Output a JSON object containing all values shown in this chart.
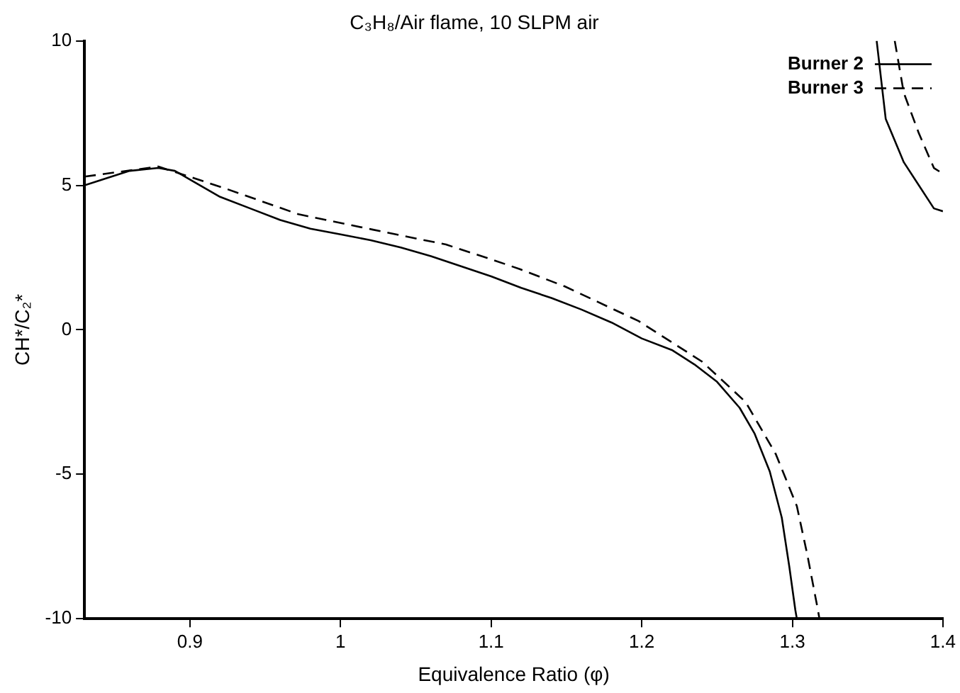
{
  "chart_data": {
    "type": "line",
    "title": "C₃H₈/Air flame, 10 SLPM air",
    "xlabel": "Equivalence Ratio (φ)",
    "ylabel": "CH*/C₂*",
    "xlim": [
      0.83,
      1.4
    ],
    "xticks": [
      0.9,
      1,
      1.1,
      1.2,
      1.3,
      1.4
    ],
    "ylim": [
      -10,
      10
    ],
    "yticks": [
      -10,
      -5,
      0,
      5,
      10
    ],
    "grid": false,
    "legend": "top right",
    "marker": "none",
    "series": [
      {
        "name": "Burner 2",
        "color": "#000000",
        "line_style": "solid",
        "x": [
          0.83,
          0.845,
          0.86,
          0.879,
          0.89,
          0.9,
          0.92,
          0.94,
          0.96,
          0.98,
          1.0,
          1.02,
          1.04,
          1.06,
          1.08,
          1.1,
          1.12,
          1.14,
          1.16,
          1.18,
          1.2,
          1.22,
          1.235,
          1.25,
          1.265,
          1.275,
          1.285,
          1.293,
          1.298,
          1.302,
          1.303,
          1.33,
          1.356,
          1.362,
          1.374,
          1.394,
          1.4
        ],
        "values": [
          5.0,
          5.25,
          5.5,
          5.6,
          5.5,
          5.2,
          4.6,
          4.2,
          3.8,
          3.5,
          3.3,
          3.1,
          2.85,
          2.55,
          2.2,
          1.85,
          1.45,
          1.1,
          0.7,
          0.25,
          -0.3,
          -0.7,
          -1.2,
          -1.8,
          -2.7,
          -3.6,
          -4.9,
          -6.5,
          -8.2,
          -9.7,
          -10,
          null,
          10,
          7.3,
          5.8,
          4.2,
          4.1
        ]
      },
      {
        "name": "Burner 3",
        "color": "#000000",
        "line_style": "dashed",
        "x": [
          0.83,
          0.879,
          0.923,
          0.972,
          1.021,
          1.07,
          1.1,
          1.119,
          1.149,
          1.198,
          1.24,
          1.269,
          1.289,
          1.303,
          1.31,
          1.317,
          1.318,
          1.34,
          1.368,
          1.374,
          1.384,
          1.394,
          1.4
        ],
        "values": [
          5.3,
          5.65,
          4.9,
          4.0,
          3.47,
          2.95,
          2.44,
          2.1,
          1.5,
          0.3,
          -1.1,
          -2.5,
          -4.3,
          -6.1,
          -7.8,
          -9.7,
          -10,
          null,
          10,
          8.2,
          6.8,
          5.6,
          5.4
        ]
      }
    ]
  }
}
